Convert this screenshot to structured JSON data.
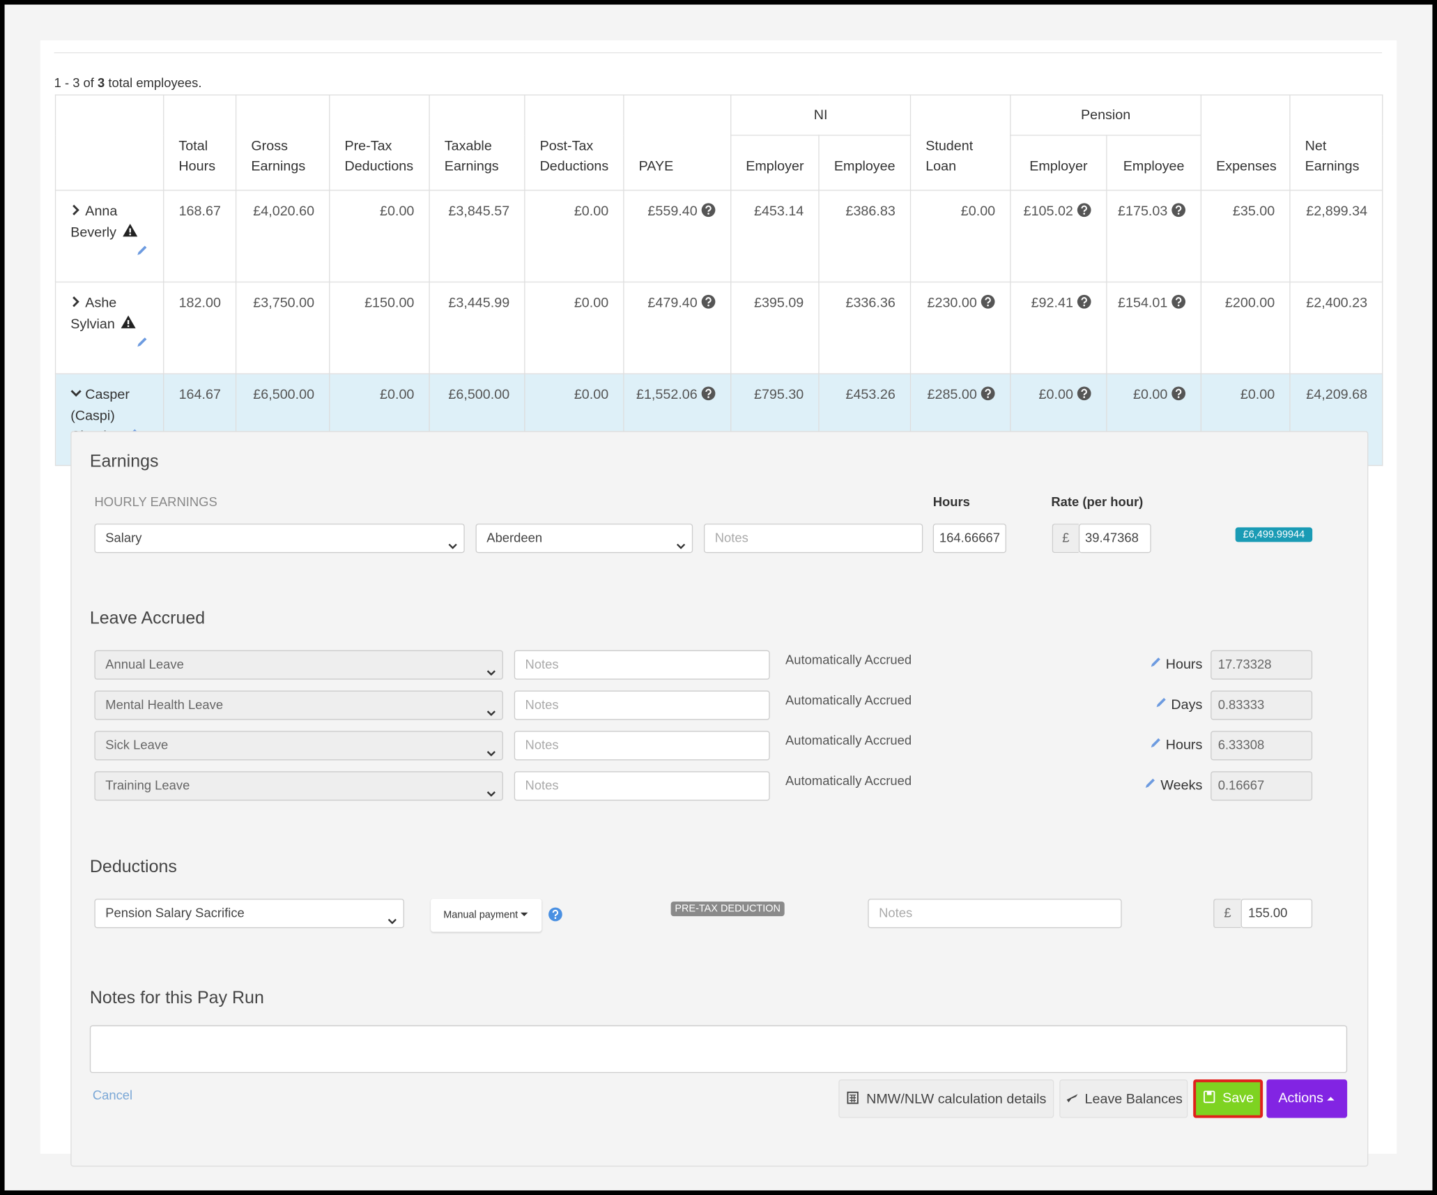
{
  "summary": {
    "prefix": "1 - 3 of",
    "count": "3",
    "suffix": "total employees."
  },
  "table": {
    "columns": [
      {
        "label": "Total Hours"
      },
      {
        "label": "Gross Earnings"
      },
      {
        "label": "Pre-Tax Deductions"
      },
      {
        "label": "Taxable Earnings"
      },
      {
        "label": "Post-Tax Deductions"
      },
      {
        "label": "PAYE"
      },
      {
        "label": "NI",
        "sub": [
          "Employer",
          "Employee"
        ]
      },
      {
        "label": "Student Loan"
      },
      {
        "label": "Pension",
        "sub": [
          "Employer",
          "Employee"
        ]
      },
      {
        "label": "Expenses"
      },
      {
        "label": "Net Earnings"
      }
    ],
    "rows": [
      {
        "name": "Anna Beverly",
        "values": [
          "168.67",
          "£4,020.60",
          "£0.00",
          "£3,845.57",
          "£0.00",
          "£559.40",
          "£453.14",
          "£386.83",
          "£0.00",
          "£105.02",
          "£175.03",
          "£35.00",
          "£2,899.34"
        ]
      },
      {
        "name": "Ashe Sylvian",
        "values": [
          "182.00",
          "£3,750.00",
          "£150.00",
          "£3,445.99",
          "£0.00",
          "£479.40",
          "£395.09",
          "£336.36",
          "£230.00",
          "£92.41",
          "£154.01",
          "£200.00",
          "£2,400.23"
        ]
      },
      {
        "name": "Casper (Caspi) Claude",
        "values": [
          "164.67",
          "£6,500.00",
          "£0.00",
          "£6,500.00",
          "£0.00",
          "£1,552.06",
          "£795.30",
          "£453.26",
          "£285.00",
          "£0.00",
          "£0.00",
          "£0.00",
          "£4,209.68"
        ]
      }
    ]
  },
  "earnings": {
    "title": "Earnings",
    "subtitle": "HOURLY EARNINGS",
    "hours_label": "Hours",
    "rate_label": "Rate (per hour)",
    "type": "Salary",
    "location": "Aberdeen",
    "notes": "Notes",
    "hours": "164.66667",
    "currency": "£",
    "rate": "39.47368",
    "total": "£6,499.99944"
  },
  "leave": {
    "title": "Leave Accrued",
    "rows": [
      {
        "type": "Annual Leave",
        "notes": "Notes",
        "status": "Automatically Accrued",
        "unit": "Hours",
        "value": "17.73328"
      },
      {
        "type": "Mental Health Leave",
        "notes": "Notes",
        "status": "Automatically Accrued",
        "unit": "Days",
        "value": "0.83333"
      },
      {
        "type": "Sick Leave",
        "notes": "Notes",
        "status": "Automatically Accrued",
        "unit": "Hours",
        "value": "6.33308"
      },
      {
        "type": "Training Leave",
        "notes": "Notes",
        "status": "Automatically Accrued",
        "unit": "Weeks",
        "value": "0.16667"
      }
    ]
  },
  "deductions": {
    "title": "Deductions",
    "type": "Pension Salary Sacrifice",
    "method": "Manual payment",
    "badge": "PRE-TAX DEDUCTION",
    "notes": "Notes",
    "currency": "£",
    "amount": "155.00"
  },
  "pay_run_notes": {
    "title": "Notes for this Pay Run"
  },
  "buttons": {
    "cancel": "Cancel",
    "nmw": "NMW/NLW calculation details",
    "leave_balances": "Leave Balances",
    "save": "Save",
    "actions": "Actions"
  }
}
